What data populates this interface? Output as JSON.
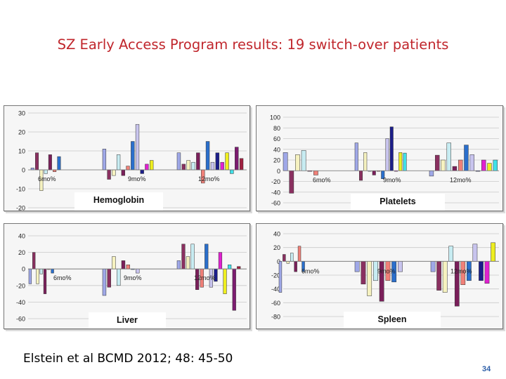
{
  "title": "SZ Early Access Program results: 19 switch-over patients",
  "citation": "Elstein et al BCMD 2012; 48: 45-50",
  "page_number": "34",
  "colors": [
    "#9fa8e8",
    "#8a3060",
    "#f6f2c0",
    "#c7ecf2",
    "#7a1f5a",
    "#f08078",
    "#2a6fcc",
    "#c8c4ee",
    "#1c1e8a",
    "#e020d0",
    "#eeee20",
    "#40e0e8",
    "#7c1c70",
    "#a02040",
    "#30a0a0",
    "#2020ff",
    "#c0f0ee",
    "#a0a0ee",
    "#b8e8b0"
  ],
  "chart_data": [
    {
      "type": "bar",
      "title": "Hemoglobin",
      "categories": [
        "6mo%",
        "9mo%",
        "12mo%"
      ],
      "ylim": [
        -20,
        30
      ],
      "yticks": [
        30,
        20,
        10,
        0,
        -10,
        -20
      ],
      "series_values": [
        [
          1,
          9,
          -11,
          -2,
          8,
          -1,
          7
        ],
        [
          11,
          -5,
          -3,
          8,
          -3,
          2,
          15,
          24,
          -2,
          3,
          5
        ],
        [
          9,
          3,
          5,
          4,
          9,
          -7,
          15,
          4,
          9,
          4,
          9,
          -2,
          12,
          6
        ]
      ]
    },
    {
      "type": "bar",
      "title": "Platelets",
      "categories": [
        "6mo%",
        "9mo%",
        "12mo%"
      ],
      "ylim": [
        -60,
        100
      ],
      "yticks": [
        100,
        80,
        60,
        40,
        20,
        0,
        -20,
        -40,
        -60
      ],
      "series_values": [
        [
          34,
          -42,
          30,
          38,
          0,
          -8
        ],
        [
          52,
          -18,
          34,
          0,
          -8,
          0,
          -15,
          60,
          82,
          0,
          34,
          33
        ],
        [
          -10,
          29,
          20,
          52,
          8,
          20,
          48,
          30,
          0,
          20,
          14,
          20
        ]
      ]
    },
    {
      "type": "bar",
      "title": "Liver",
      "categories": [
        "6mo%",
        "9mo%",
        "12mo%"
      ],
      "ylim": [
        -60,
        40
      ],
      "yticks": [
        40,
        20,
        0,
        -20,
        -40,
        -60
      ],
      "series_values": [
        [
          -18,
          20,
          -18,
          -6,
          -30,
          0,
          -5
        ],
        [
          -32,
          -22,
          15,
          -20,
          10,
          5,
          0,
          -5
        ],
        [
          10,
          30,
          15,
          30,
          -25,
          -22,
          30,
          -22,
          -15,
          20,
          -30,
          5,
          -50,
          3
        ]
      ]
    },
    {
      "type": "bar",
      "title": "Spleen",
      "categories": [
        "6mo%",
        "9mo%",
        "12mo%"
      ],
      "ylim": [
        -80,
        40
      ],
      "yticks": [
        40,
        20,
        0,
        -20,
        -40,
        -60,
        -80
      ],
      "series_values": [
        [
          -45,
          10,
          -3,
          12,
          -15,
          22,
          -15
        ],
        [
          -15,
          -33,
          -50,
          -28,
          -58,
          -28,
          -30,
          -15
        ],
        [
          -15,
          -42,
          -45,
          22,
          -65,
          -34,
          -28,
          25,
          -28,
          -32,
          27
        ]
      ]
    }
  ]
}
